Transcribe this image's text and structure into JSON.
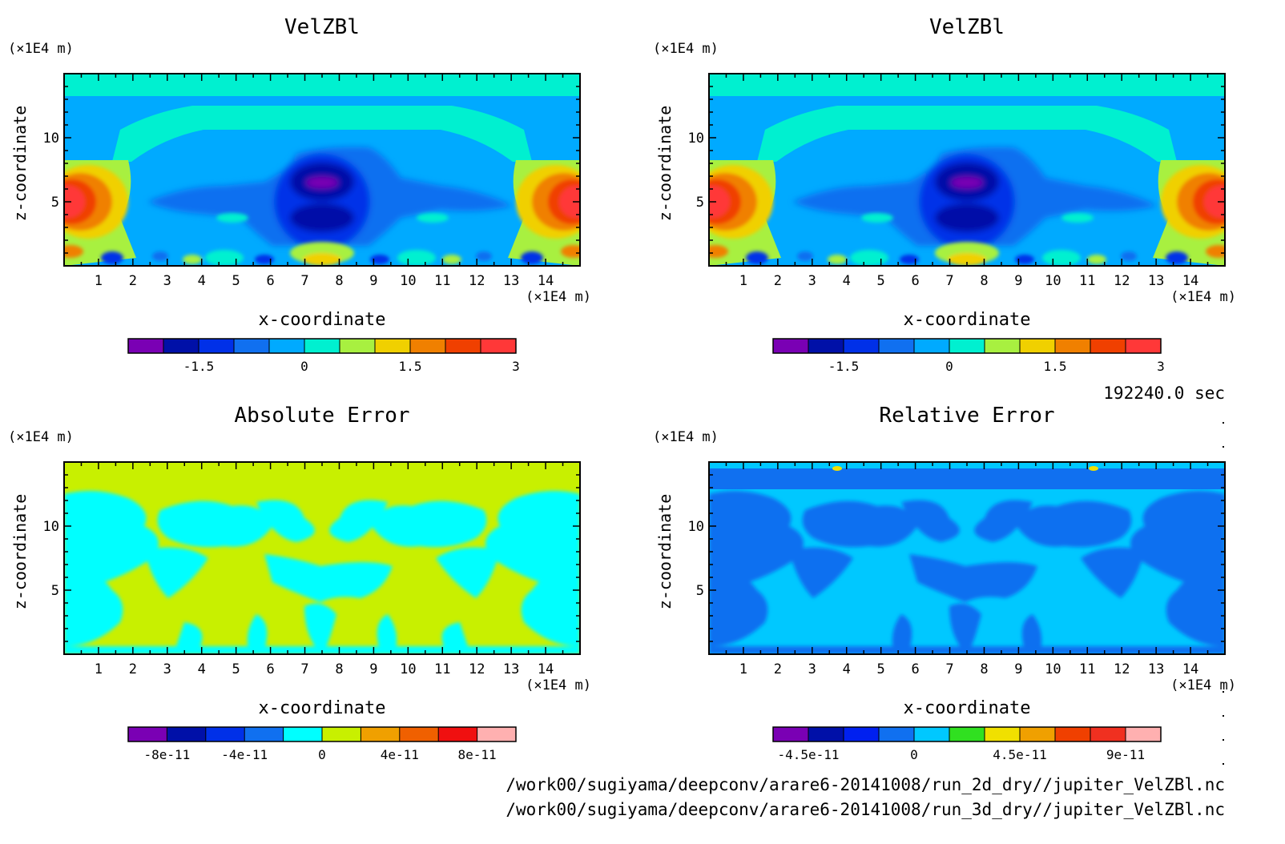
{
  "time_label": "192240.0 sec",
  "file_paths": [
    "/work00/sugiyama/deepconv/arare6-20141008/run_2d_dry//jupiter_VelZBl.nc",
    "/work00/sugiyama/deepconv/arare6-20141008/run_3d_dry//jupiter_VelZBl.nc"
  ],
  "chart_data": [
    {
      "type": "heatmap",
      "title": "VelZBl",
      "xlabel": "x-coordinate",
      "ylabel": "z-coordinate",
      "x_unit": "(×1E4 m)",
      "y_unit": "(×1E4 m)",
      "xlim": [
        0,
        15
      ],
      "ylim": [
        0,
        15
      ],
      "xticks": [
        1,
        2,
        3,
        4,
        5,
        6,
        7,
        8,
        9,
        10,
        11,
        12,
        13,
        14
      ],
      "yticks": [
        5,
        10
      ],
      "colorbar": {
        "colors": [
          "#7a00b4",
          "#0010a8",
          "#0030e8",
          "#1070f0",
          "#00aaff",
          "#00f0d0",
          "#a8f040",
          "#f0d000",
          "#f08000",
          "#f04000",
          "#ff3838"
        ],
        "tick_values": [
          -1.5,
          0,
          1.5,
          3
        ],
        "tick_labels": [
          "-1.5",
          "0",
          "1.5",
          "3"
        ]
      }
    },
    {
      "type": "heatmap",
      "title": "VelZBl",
      "xlabel": "x-coordinate",
      "ylabel": "z-coordinate",
      "x_unit": "(×1E4 m)",
      "y_unit": "(×1E4 m)",
      "xlim": [
        0,
        15
      ],
      "ylim": [
        0,
        15
      ],
      "xticks": [
        1,
        2,
        3,
        4,
        5,
        6,
        7,
        8,
        9,
        10,
        11,
        12,
        13,
        14
      ],
      "yticks": [
        5,
        10
      ],
      "colorbar": {
        "colors": [
          "#7a00b4",
          "#0010a8",
          "#0030e8",
          "#1070f0",
          "#00aaff",
          "#00f0d0",
          "#a8f040",
          "#f0d000",
          "#f08000",
          "#f04000",
          "#ff3838"
        ],
        "tick_values": [
          -1.5,
          0,
          1.5,
          3
        ],
        "tick_labels": [
          "-1.5",
          "0",
          "1.5",
          "3"
        ]
      }
    },
    {
      "type": "heatmap",
      "title": "Absolute Error",
      "xlabel": "x-coordinate",
      "ylabel": "z-coordinate",
      "x_unit": "(×1E4 m)",
      "y_unit": "(×1E4 m)",
      "xlim": [
        0,
        15
      ],
      "ylim": [
        0,
        15
      ],
      "xticks": [
        1,
        2,
        3,
        4,
        5,
        6,
        7,
        8,
        9,
        10,
        11,
        12,
        13,
        14
      ],
      "yticks": [
        5,
        10
      ],
      "colorbar": {
        "colors": [
          "#7a00b4",
          "#0010a8",
          "#0030e8",
          "#1070f0",
          "#00ffff",
          "#c8f000",
          "#f0a000",
          "#f06000",
          "#f01010",
          "#ffb0b0"
        ],
        "tick_values": [
          -8e-11,
          -4e-11,
          0,
          4e-11,
          8e-11
        ],
        "tick_labels": [
          "-8e-11",
          "-4e-11",
          "0",
          "4e-11",
          "8e-11"
        ]
      }
    },
    {
      "type": "heatmap",
      "title": "Relative Error",
      "xlabel": "x-coordinate",
      "ylabel": "z-coordinate",
      "x_unit": "(×1E4 m)",
      "y_unit": "(×1E4 m)",
      "xlim": [
        0,
        15
      ],
      "ylim": [
        0,
        15
      ],
      "xticks": [
        1,
        2,
        3,
        4,
        5,
        6,
        7,
        8,
        9,
        10,
        11,
        12,
        13,
        14
      ],
      "yticks": [
        5,
        10
      ],
      "colorbar": {
        "colors": [
          "#7a00b4",
          "#0010a8",
          "#0020f0",
          "#1070f0",
          "#00c8ff",
          "#30e020",
          "#f0e000",
          "#f0a000",
          "#f04000",
          "#f03020",
          "#ffb0b0"
        ],
        "tick_values": [
          -4.5e-11,
          0,
          4.5e-11,
          9e-11
        ],
        "tick_labels": [
          "-4.5e-11",
          "0",
          "4.5e-11",
          "9e-11"
        ]
      }
    }
  ]
}
